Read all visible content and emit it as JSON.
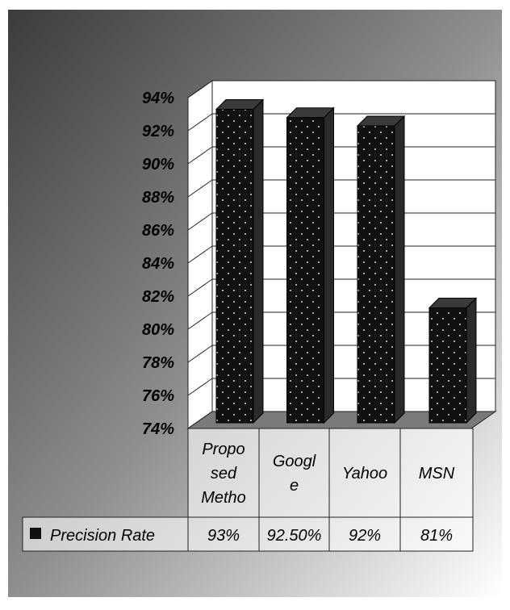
{
  "chart_data": {
    "type": "bar",
    "categories": [
      "Propo sed Metho",
      "Googl e",
      "Yahoo",
      "MSN"
    ],
    "category_label_lines": [
      [
        "Propo",
        "sed",
        "Metho"
      ],
      [
        "Googl",
        "e"
      ],
      [
        "Yahoo"
      ],
      [
        "MSN"
      ]
    ],
    "series": [
      {
        "name": "Precision Rate",
        "values": [
          93,
          92.5,
          92,
          81
        ],
        "labels": [
          "93%",
          "92.50%",
          "92%",
          "81%"
        ]
      }
    ],
    "ylim": [
      74,
      94
    ],
    "yticks": [
      "94%",
      "92%",
      "90%",
      "88%",
      "86%",
      "84%",
      "82%",
      "80%",
      "78%",
      "76%",
      "74%"
    ],
    "grid": true,
    "legend": "data-table",
    "colors": {
      "bar": "#111111",
      "bar_side": "#2a2a2a",
      "bar_top": "#3a3a3a",
      "dots": "#cfcfcf",
      "floor": "#7a7a7a"
    }
  }
}
